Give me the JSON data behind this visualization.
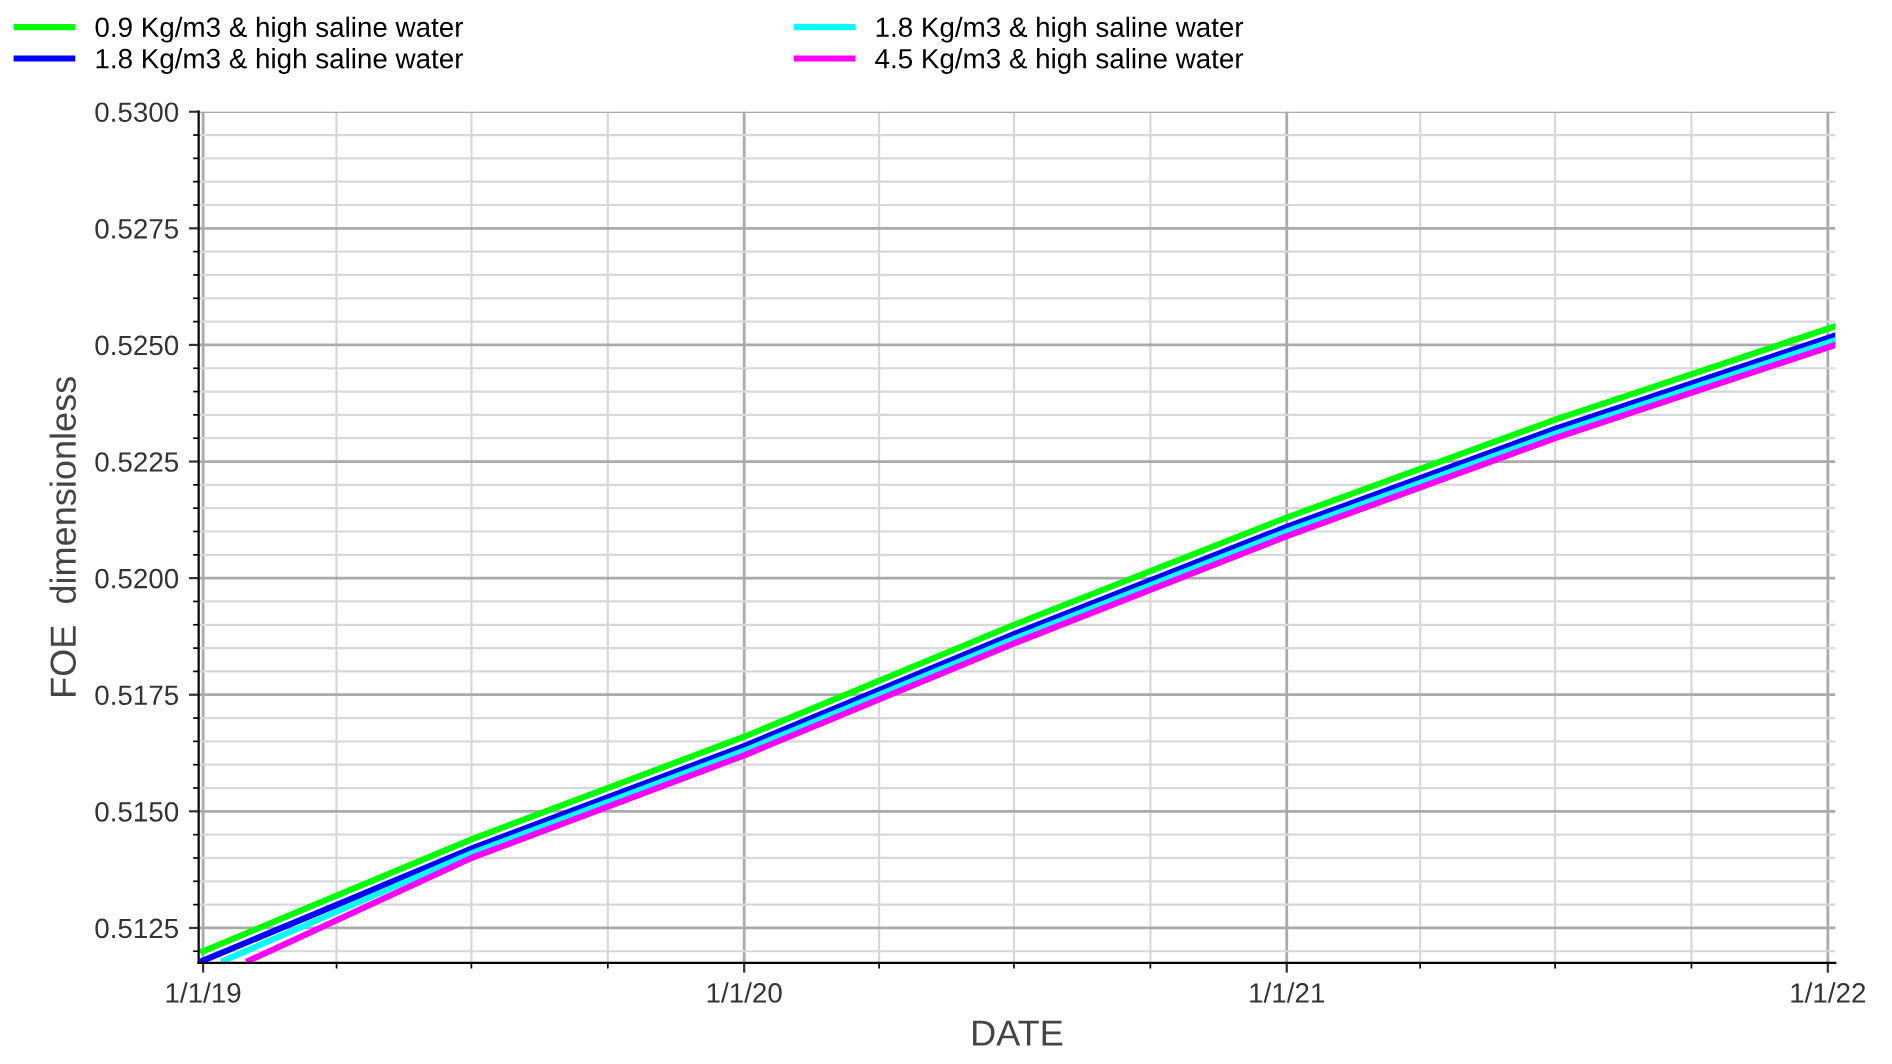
{
  "chart_data": {
    "type": "line",
    "xlabel": "DATE",
    "ylabel": "FOE  dimensionless",
    "xlim": [
      "2018-12-29",
      "2022-01-06"
    ],
    "ylim": [
      0.51175,
      0.53
    ],
    "xticks": [
      {
        "value": "2019-01-01",
        "label": "1/1/19"
      },
      {
        "value": "2020-01-01",
        "label": "1/1/20"
      },
      {
        "value": "2021-01-01",
        "label": "1/1/21"
      },
      {
        "value": "2022-01-01",
        "label": "1/1/22"
      }
    ],
    "yticks": [
      {
        "value": 0.5125,
        "label": "0.5125"
      },
      {
        "value": 0.515,
        "label": "0.5150"
      },
      {
        "value": 0.5175,
        "label": "0.5175"
      },
      {
        "value": 0.52,
        "label": "0.5200"
      },
      {
        "value": 0.5225,
        "label": "0.5225"
      },
      {
        "value": 0.525,
        "label": "0.5250"
      },
      {
        "value": 0.5275,
        "label": "0.5275"
      },
      {
        "value": 0.53,
        "label": "0.5300"
      }
    ],
    "grid": true,
    "legend": "top",
    "marker": "none",
    "line_style": "solid",
    "series": [
      {
        "name": "0.9 Kg/m3 & high saline water",
        "color": "#00ff00",
        "x": [
          "2019-01-01",
          "2019-07-01",
          "2020-01-01",
          "2020-07-01",
          "2021-01-01",
          "2021-07-01",
          "2022-01-06"
        ],
        "values": [
          0.512,
          0.5144,
          0.5166,
          0.519,
          0.5213,
          0.5234,
          0.5254
        ]
      },
      {
        "name": "1.8 Kg/m3 & high saline water",
        "color": "#0000ff",
        "x": [
          "2019-01-01",
          "2019-07-01",
          "2020-01-01",
          "2020-07-01",
          "2021-01-01",
          "2021-07-01",
          "2022-01-06"
        ],
        "values": [
          0.5118,
          0.5142,
          0.5164,
          0.5188,
          0.5211,
          0.5232,
          0.5252
        ]
      },
      {
        "name": "1.8 Kg/m3 & high saline water",
        "color": "#00ffff",
        "x": [
          "2019-01-15",
          "2019-07-01",
          "2020-01-01",
          "2020-07-01",
          "2021-01-01",
          "2021-07-01",
          "2022-01-06"
        ],
        "values": [
          0.5118,
          0.5141,
          0.5163,
          0.5187,
          0.521,
          0.5231,
          0.5251
        ]
      },
      {
        "name": "4.5 Kg/m3 & high saline water",
        "color": "#ff00ff",
        "x": [
          "2019-02-01",
          "2019-07-01",
          "2020-01-01",
          "2020-07-01",
          "2021-01-01",
          "2021-07-01",
          "2022-01-06"
        ],
        "values": [
          0.5118,
          0.514,
          0.5162,
          0.5186,
          0.5209,
          0.523,
          0.525
        ]
      }
    ]
  }
}
